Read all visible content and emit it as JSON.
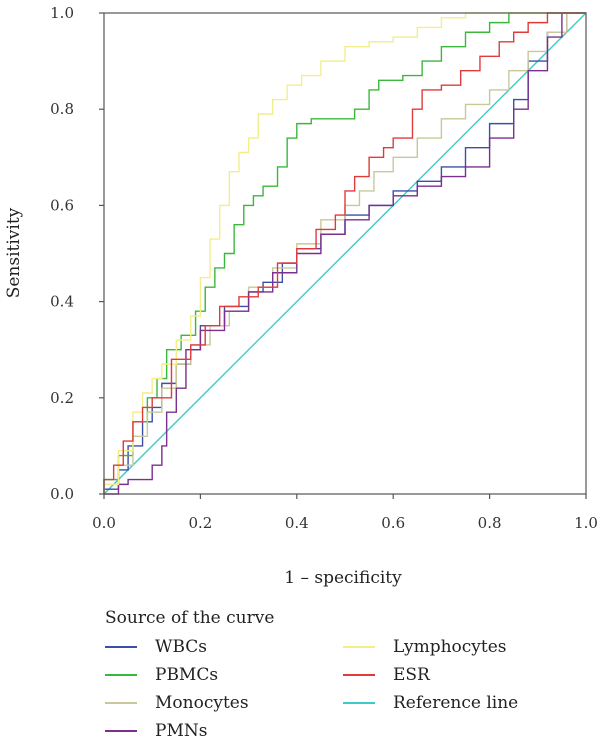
{
  "chart_data": {
    "type": "line",
    "xlabel": "1 – specificity",
    "ylabel": "Sensitivity",
    "xlim": [
      0,
      1
    ],
    "ylim": [
      0,
      1
    ],
    "x_ticks": [
      "0.0",
      "0.2",
      "0.4",
      "0.6",
      "0.8",
      "1.0"
    ],
    "y_ticks": [
      "0.0",
      "0.2",
      "0.4",
      "0.6",
      "0.8",
      "1.0"
    ],
    "grid": false,
    "legend_placement": "bottom",
    "legend_title": "Source of the curve",
    "series": [
      {
        "name": "WBCs",
        "color": "#3b4fa8",
        "points": [
          [
            0,
            0
          ],
          [
            0.03,
            0.01
          ],
          [
            0.05,
            0.05
          ],
          [
            0.08,
            0.1
          ],
          [
            0.1,
            0.15
          ],
          [
            0.12,
            0.18
          ],
          [
            0.15,
            0.23
          ],
          [
            0.18,
            0.27
          ],
          [
            0.2,
            0.3
          ],
          [
            0.25,
            0.35
          ],
          [
            0.3,
            0.39
          ],
          [
            0.33,
            0.42
          ],
          [
            0.37,
            0.44
          ],
          [
            0.4,
            0.48
          ],
          [
            0.45,
            0.51
          ],
          [
            0.5,
            0.54
          ],
          [
            0.55,
            0.58
          ],
          [
            0.6,
            0.6
          ],
          [
            0.65,
            0.63
          ],
          [
            0.7,
            0.65
          ],
          [
            0.75,
            0.68
          ],
          [
            0.8,
            0.72
          ],
          [
            0.85,
            0.77
          ],
          [
            0.88,
            0.82
          ],
          [
            0.92,
            0.9
          ],
          [
            0.96,
            0.96
          ],
          [
            1,
            1
          ]
        ]
      },
      {
        "name": "PBMCs",
        "color": "#3bb83b",
        "points": [
          [
            0,
            0
          ],
          [
            0.03,
            0.03
          ],
          [
            0.06,
            0.08
          ],
          [
            0.09,
            0.15
          ],
          [
            0.11,
            0.2
          ],
          [
            0.13,
            0.24
          ],
          [
            0.16,
            0.3
          ],
          [
            0.19,
            0.33
          ],
          [
            0.21,
            0.38
          ],
          [
            0.23,
            0.43
          ],
          [
            0.25,
            0.47
          ],
          [
            0.27,
            0.5
          ],
          [
            0.29,
            0.56
          ],
          [
            0.31,
            0.6
          ],
          [
            0.33,
            0.62
          ],
          [
            0.36,
            0.64
          ],
          [
            0.38,
            0.68
          ],
          [
            0.4,
            0.74
          ],
          [
            0.43,
            0.77
          ],
          [
            0.46,
            0.78
          ],
          [
            0.52,
            0.78
          ],
          [
            0.55,
            0.8
          ],
          [
            0.57,
            0.84
          ],
          [
            0.62,
            0.86
          ],
          [
            0.66,
            0.87
          ],
          [
            0.7,
            0.9
          ],
          [
            0.75,
            0.93
          ],
          [
            0.8,
            0.96
          ],
          [
            0.84,
            0.98
          ],
          [
            0.88,
            1
          ],
          [
            1,
            1
          ]
        ]
      },
      {
        "name": "Monocytes",
        "color": "#c8c89a",
        "points": [
          [
            0,
            0
          ],
          [
            0.03,
            0.02
          ],
          [
            0.06,
            0.06
          ],
          [
            0.09,
            0.12
          ],
          [
            0.12,
            0.17
          ],
          [
            0.15,
            0.22
          ],
          [
            0.18,
            0.27
          ],
          [
            0.22,
            0.31
          ],
          [
            0.26,
            0.35
          ],
          [
            0.3,
            0.38
          ],
          [
            0.35,
            0.43
          ],
          [
            0.4,
            0.47
          ],
          [
            0.45,
            0.52
          ],
          [
            0.5,
            0.57
          ],
          [
            0.53,
            0.6
          ],
          [
            0.56,
            0.63
          ],
          [
            0.6,
            0.67
          ],
          [
            0.65,
            0.7
          ],
          [
            0.7,
            0.74
          ],
          [
            0.75,
            0.78
          ],
          [
            0.8,
            0.81
          ],
          [
            0.84,
            0.84
          ],
          [
            0.88,
            0.88
          ],
          [
            0.92,
            0.92
          ],
          [
            0.96,
            0.96
          ],
          [
            1,
            1
          ]
        ]
      },
      {
        "name": "PMNs",
        "color": "#7b2f8f",
        "points": [
          [
            0,
            0
          ],
          [
            0.03,
            0
          ],
          [
            0.05,
            0.02
          ],
          [
            0.1,
            0.03
          ],
          [
            0.12,
            0.06
          ],
          [
            0.13,
            0.1
          ],
          [
            0.15,
            0.17
          ],
          [
            0.17,
            0.22
          ],
          [
            0.2,
            0.3
          ],
          [
            0.25,
            0.34
          ],
          [
            0.3,
            0.38
          ],
          [
            0.35,
            0.42
          ],
          [
            0.4,
            0.46
          ],
          [
            0.45,
            0.5
          ],
          [
            0.5,
            0.54
          ],
          [
            0.55,
            0.57
          ],
          [
            0.6,
            0.6
          ],
          [
            0.65,
            0.62
          ],
          [
            0.7,
            0.64
          ],
          [
            0.75,
            0.66
          ],
          [
            0.8,
            0.68
          ],
          [
            0.85,
            0.74
          ],
          [
            0.88,
            0.8
          ],
          [
            0.92,
            0.88
          ],
          [
            0.95,
            0.95
          ],
          [
            1,
            1
          ]
        ]
      },
      {
        "name": "Lymphocytes",
        "color": "#f2ee8c",
        "points": [
          [
            0,
            0
          ],
          [
            0.03,
            0.02
          ],
          [
            0.06,
            0.09
          ],
          [
            0.08,
            0.17
          ],
          [
            0.1,
            0.21
          ],
          [
            0.12,
            0.24
          ],
          [
            0.15,
            0.27
          ],
          [
            0.18,
            0.32
          ],
          [
            0.2,
            0.37
          ],
          [
            0.22,
            0.45
          ],
          [
            0.24,
            0.53
          ],
          [
            0.26,
            0.6
          ],
          [
            0.28,
            0.67
          ],
          [
            0.3,
            0.71
          ],
          [
            0.32,
            0.74
          ],
          [
            0.35,
            0.79
          ],
          [
            0.38,
            0.82
          ],
          [
            0.41,
            0.85
          ],
          [
            0.45,
            0.87
          ],
          [
            0.5,
            0.9
          ],
          [
            0.55,
            0.93
          ],
          [
            0.6,
            0.94
          ],
          [
            0.65,
            0.95
          ],
          [
            0.7,
            0.97
          ],
          [
            0.75,
            0.99
          ],
          [
            0.8,
            1
          ],
          [
            1,
            1
          ]
        ]
      },
      {
        "name": "ESR",
        "color": "#e03b3b",
        "points": [
          [
            0,
            0
          ],
          [
            0.02,
            0.03
          ],
          [
            0.04,
            0.06
          ],
          [
            0.06,
            0.11
          ],
          [
            0.08,
            0.15
          ],
          [
            0.1,
            0.18
          ],
          [
            0.14,
            0.2
          ],
          [
            0.18,
            0.28
          ],
          [
            0.21,
            0.31
          ],
          [
            0.24,
            0.35
          ],
          [
            0.28,
            0.39
          ],
          [
            0.32,
            0.41
          ],
          [
            0.36,
            0.43
          ],
          [
            0.4,
            0.48
          ],
          [
            0.44,
            0.51
          ],
          [
            0.48,
            0.55
          ],
          [
            0.5,
            0.58
          ],
          [
            0.52,
            0.63
          ],
          [
            0.55,
            0.66
          ],
          [
            0.58,
            0.7
          ],
          [
            0.6,
            0.72
          ],
          [
            0.64,
            0.74
          ],
          [
            0.66,
            0.8
          ],
          [
            0.7,
            0.84
          ],
          [
            0.74,
            0.85
          ],
          [
            0.78,
            0.88
          ],
          [
            0.82,
            0.91
          ],
          [
            0.85,
            0.94
          ],
          [
            0.88,
            0.96
          ],
          [
            0.92,
            0.98
          ],
          [
            1,
            1
          ]
        ]
      },
      {
        "name": "Reference line",
        "color": "#40c9c9",
        "points": [
          [
            0,
            0
          ],
          [
            1,
            1
          ]
        ]
      }
    ]
  }
}
